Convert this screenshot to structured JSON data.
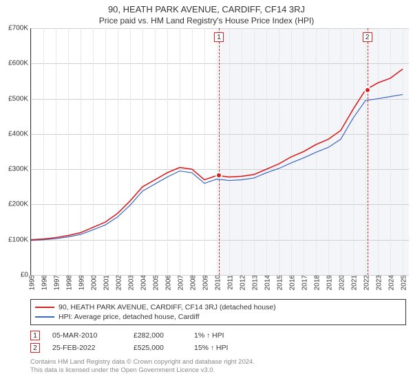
{
  "title": "90, HEATH PARK AVENUE, CARDIFF, CF14 3RJ",
  "subtitle": "Price paid vs. HM Land Registry's House Price Index (HPI)",
  "chart": {
    "type": "line",
    "x_years": [
      1995,
      1996,
      1997,
      1998,
      1999,
      2000,
      2001,
      2002,
      2003,
      2004,
      2005,
      2006,
      2007,
      2008,
      2009,
      2010,
      2011,
      2012,
      2013,
      2014,
      2015,
      2016,
      2017,
      2018,
      2019,
      2020,
      2021,
      2022,
      2023,
      2024,
      2025
    ],
    "xlim": [
      1995,
      2025.5
    ],
    "ylim": [
      0,
      700000
    ],
    "ytick_step": 100000,
    "yticks": [
      0,
      100000,
      200000,
      300000,
      400000,
      500000,
      600000,
      700000
    ],
    "ytick_labels": [
      "£0",
      "£100K",
      "£200K",
      "£300K",
      "£400K",
      "£500K",
      "£600K",
      "£700K"
    ],
    "plot_bg_color": "#ffffff",
    "shaded_bg_color": "#f3f5f9",
    "shaded_from_year": 2010.17,
    "grid_color_major": "#cfcfcf",
    "grid_color_minor": "#e8e8e8",
    "axis_color": "#333333",
    "series": {
      "property": {
        "label": "90, HEATH PARK AVENUE, CARDIFF, CF14 3RJ (detached house)",
        "color": "#d82020",
        "width": 1.6,
        "points": [
          [
            1995,
            100000
          ],
          [
            1996,
            102000
          ],
          [
            1997,
            106000
          ],
          [
            1998,
            112000
          ],
          [
            1999,
            120000
          ],
          [
            2000,
            135000
          ],
          [
            2001,
            150000
          ],
          [
            2002,
            175000
          ],
          [
            2003,
            210000
          ],
          [
            2004,
            250000
          ],
          [
            2005,
            270000
          ],
          [
            2006,
            290000
          ],
          [
            2007,
            305000
          ],
          [
            2008,
            300000
          ],
          [
            2009,
            270000
          ],
          [
            2010,
            282000
          ],
          [
            2011,
            278000
          ],
          [
            2012,
            280000
          ],
          [
            2013,
            285000
          ],
          [
            2014,
            300000
          ],
          [
            2015,
            315000
          ],
          [
            2016,
            335000
          ],
          [
            2017,
            350000
          ],
          [
            2018,
            370000
          ],
          [
            2019,
            385000
          ],
          [
            2020,
            410000
          ],
          [
            2021,
            470000
          ],
          [
            2022,
            525000
          ],
          [
            2023,
            545000
          ],
          [
            2024,
            558000
          ],
          [
            2025,
            584000
          ]
        ]
      },
      "hpi": {
        "label": "HPI: Average price, detached house, Cardiff",
        "color": "#3a66c4",
        "width": 1.2,
        "points": [
          [
            1995,
            98000
          ],
          [
            1996,
            100000
          ],
          [
            1997,
            103000
          ],
          [
            1998,
            108000
          ],
          [
            1999,
            115000
          ],
          [
            2000,
            128000
          ],
          [
            2001,
            142000
          ],
          [
            2002,
            165000
          ],
          [
            2003,
            198000
          ],
          [
            2004,
            238000
          ],
          [
            2005,
            258000
          ],
          [
            2006,
            278000
          ],
          [
            2007,
            295000
          ],
          [
            2008,
            290000
          ],
          [
            2009,
            260000
          ],
          [
            2010,
            272000
          ],
          [
            2011,
            268000
          ],
          [
            2012,
            270000
          ],
          [
            2013,
            275000
          ],
          [
            2014,
            290000
          ],
          [
            2015,
            302000
          ],
          [
            2016,
            318000
          ],
          [
            2017,
            332000
          ],
          [
            2018,
            348000
          ],
          [
            2019,
            362000
          ],
          [
            2020,
            385000
          ],
          [
            2021,
            445000
          ],
          [
            2022,
            495000
          ],
          [
            2023,
            500000
          ],
          [
            2024,
            506000
          ],
          [
            2025,
            512000
          ]
        ]
      }
    },
    "transactions": [
      {
        "n": "1",
        "year": 2010.17,
        "price": 282000,
        "date_label": "05-MAR-2010",
        "price_label": "£282,000",
        "hpi_pct": "1%",
        "hpi_arrow": "↑",
        "hpi_suffix": "HPI",
        "marker_color": "#d82020"
      },
      {
        "n": "2",
        "year": 2022.15,
        "price": 525000,
        "date_label": "25-FEB-2022",
        "price_label": "£525,000",
        "hpi_pct": "15%",
        "hpi_arrow": "↑",
        "hpi_suffix": "HPI",
        "marker_color": "#d82020"
      }
    ],
    "dot_fill": "#d82020",
    "dot_stroke": "#ffffff"
  },
  "legend": {
    "border_color": "#333333"
  },
  "footer": {
    "line1": "Contains HM Land Registry data © Crown copyright and database right 2024.",
    "line2": "This data is licensed under the Open Government Licence v3.0."
  }
}
